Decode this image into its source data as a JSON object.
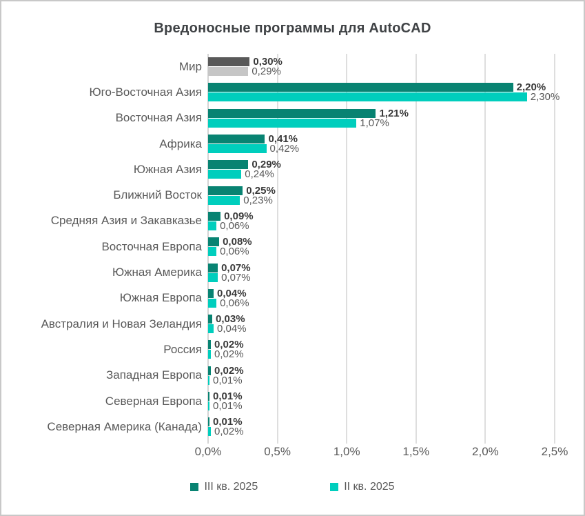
{
  "title": "Вредоносные программы для AutoCAD",
  "chart_data": {
    "type": "bar",
    "orientation": "horizontal",
    "title": "Вредоносные программы для AutoCAD",
    "categories": [
      "Мир",
      "Юго-Восточная Азия",
      "Восточная Азия",
      "Африка",
      "Южная Азия",
      "Ближний Восток",
      "Средняя Азия и Закавказье",
      "Восточная Европа",
      "Южная Америка",
      "Южная Европа",
      "Австралия и Новая Зеландия",
      "Россия",
      "Западная Европа",
      "Северная Европа",
      "Северная Америка (Канада)"
    ],
    "series": [
      {
        "name": "III кв. 2025",
        "color": "#088372",
        "values": [
          0.3,
          2.2,
          1.21,
          0.41,
          0.29,
          0.25,
          0.09,
          0.08,
          0.07,
          0.04,
          0.03,
          0.02,
          0.02,
          0.01,
          0.01
        ],
        "labels": [
          "0,30%",
          "2,20%",
          "1,21%",
          "0,41%",
          "0,29%",
          "0,25%",
          "0,09%",
          "0,08%",
          "0,07%",
          "0,04%",
          "0,03%",
          "0,02%",
          "0,02%",
          "0,01%",
          "0,01%"
        ]
      },
      {
        "name": "II кв. 2025",
        "color": "#00cebd",
        "values": [
          0.29,
          2.3,
          1.07,
          0.42,
          0.24,
          0.23,
          0.06,
          0.06,
          0.07,
          0.06,
          0.04,
          0.02,
          0.01,
          0.01,
          0.02
        ],
        "labels": [
          "0,29%",
          "2,30%",
          "1,07%",
          "0,42%",
          "0,24%",
          "0,23%",
          "0,06%",
          "0,06%",
          "0,07%",
          "0,06%",
          "0,04%",
          "0,02%",
          "0,01%",
          "0,01%",
          "0,02%"
        ]
      }
    ],
    "highlight_category": "Мир",
    "highlight_colors": [
      "#595959",
      "#c6c6c6"
    ],
    "xlim": [
      0,
      2.5
    ],
    "x_ticks": [
      {
        "value": 0.0,
        "label": "0,0%"
      },
      {
        "value": 0.5,
        "label": "0,5%"
      },
      {
        "value": 1.0,
        "label": "1,0%"
      },
      {
        "value": 1.5,
        "label": "1,5%"
      },
      {
        "value": 2.0,
        "label": "2,0%"
      },
      {
        "value": 2.5,
        "label": "2,5%"
      }
    ],
    "grid": true,
    "legend_position": "bottom"
  },
  "colors": {
    "series_1": "#088372",
    "series_2": "#00cebd",
    "world_series_1": "#595959",
    "world_series_2": "#c6c6c6",
    "gridline": "#dedede",
    "title_text": "#3f4245",
    "category_text": "#595959",
    "value_primary_text": "#3a3a3a",
    "value_secondary_text": "#595959",
    "tick_text": "#595959",
    "legend_text": "#595959",
    "frame_border": "#c8c8c8",
    "background": "#ffffff"
  }
}
